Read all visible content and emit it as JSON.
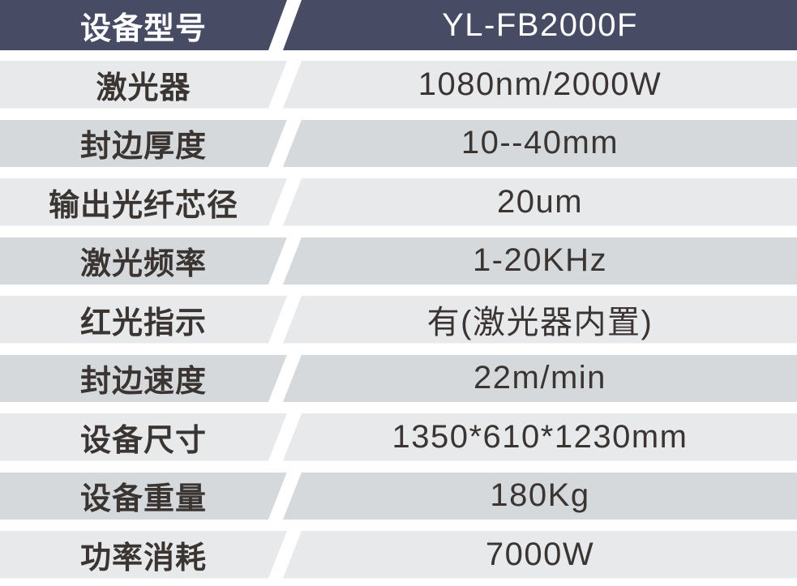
{
  "table": {
    "header": {
      "label": "设备型号",
      "value": "YL-FB2000F"
    },
    "rows": [
      {
        "label": "激光器",
        "value": "1080nm/2000W"
      },
      {
        "label": "封边厚度",
        "value": "10--40mm"
      },
      {
        "label": "输出光纤芯径",
        "value": "20um"
      },
      {
        "label": "激光频率",
        "value": "1-20KHz"
      },
      {
        "label": "红光指示",
        "value": "有(激光器内置)"
      },
      {
        "label": "封边速度",
        "value": "22m/min"
      },
      {
        "label": "设备尺寸",
        "value": "1350*610*1230mm"
      },
      {
        "label": "设备重量",
        "value": "180Kg"
      },
      {
        "label": "功率消耗",
        "value": "7000W"
      }
    ],
    "colors": {
      "header_bg": "#474c64",
      "row_light": "#e8e9eb",
      "row_dark": "#d6d9db",
      "text_dark": "#3a3532",
      "text_light": "#ffffff",
      "background": "#ffffff"
    }
  }
}
